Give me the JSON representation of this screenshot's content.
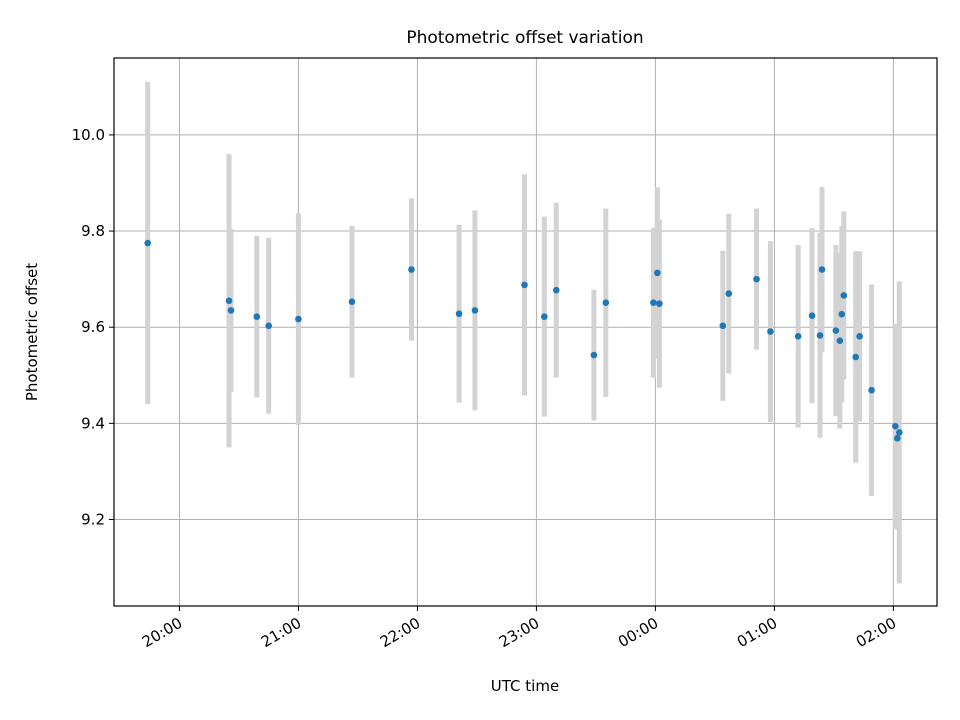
{
  "chart_data": {
    "type": "scatter",
    "title": "Photometric offset variation",
    "xlabel": "UTC time",
    "ylabel": "Photometric offset",
    "x_tick_labels": [
      "20:00",
      "21:00",
      "22:00",
      "23:00",
      "00:00",
      "01:00",
      "02:00"
    ],
    "x_ticks": [
      "20:00",
      "21:00",
      "22:00",
      "23:00",
      "24:00",
      "25:00",
      "26:00"
    ],
    "xlim": [
      "19:27",
      "26:22"
    ],
    "y_tick_labels": [
      "9.2",
      "9.4",
      "9.6",
      "9.8",
      "10.0"
    ],
    "y_ticks": [
      9.2,
      9.4,
      9.6,
      9.8,
      10.0
    ],
    "ylim": [
      9.02,
      10.16
    ],
    "grid": true,
    "point_color": "#1f77b4",
    "errorbar_color": "#d3d3d3",
    "series": [
      {
        "points": [
          {
            "t": "19:44",
            "y": 9.775,
            "err": 0.335
          },
          {
            "t": "20:25",
            "y": 9.655,
            "err": 0.305
          },
          {
            "t": "20:26",
            "y": 9.635,
            "err": 0.17
          },
          {
            "t": "20:39",
            "y": 9.622,
            "err": 0.168
          },
          {
            "t": "20:45",
            "y": 9.603,
            "err": 0.183
          },
          {
            "t": "21:00",
            "y": 9.617,
            "err": 0.22
          },
          {
            "t": "21:27",
            "y": 9.653,
            "err": 0.158
          },
          {
            "t": "21:57",
            "y": 9.72,
            "err": 0.148
          },
          {
            "t": "22:21",
            "y": 9.628,
            "err": 0.185
          },
          {
            "t": "22:29",
            "y": 9.635,
            "err": 0.208
          },
          {
            "t": "22:54",
            "y": 9.688,
            "err": 0.23
          },
          {
            "t": "23:04",
            "y": 9.622,
            "err": 0.208
          },
          {
            "t": "23:10",
            "y": 9.677,
            "err": 0.182
          },
          {
            "t": "23:29",
            "y": 9.542,
            "err": 0.136
          },
          {
            "t": "23:35",
            "y": 9.651,
            "err": 0.196
          },
          {
            "t": "23:59",
            "y": 9.651,
            "err": 0.156
          },
          {
            "t": "24:01",
            "y": 9.713,
            "err": 0.178
          },
          {
            "t": "24:02",
            "y": 9.649,
            "err": 0.175
          },
          {
            "t": "24:34",
            "y": 9.603,
            "err": 0.156
          },
          {
            "t": "24:37",
            "y": 9.67,
            "err": 0.166
          },
          {
            "t": "24:51",
            "y": 9.7,
            "err": 0.147
          },
          {
            "t": "24:58",
            "y": 9.591,
            "err": 0.188
          },
          {
            "t": "25:12",
            "y": 9.581,
            "err": 0.19
          },
          {
            "t": "25:19",
            "y": 9.624,
            "err": 0.182
          },
          {
            "t": "25:23",
            "y": 9.583,
            "err": 0.213
          },
          {
            "t": "25:24",
            "y": 9.72,
            "err": 0.172
          },
          {
            "t": "25:31",
            "y": 9.593,
            "err": 0.178
          },
          {
            "t": "25:33",
            "y": 9.572,
            "err": 0.183
          },
          {
            "t": "25:34",
            "y": 9.627,
            "err": 0.183
          },
          {
            "t": "25:35",
            "y": 9.666,
            "err": 0.175
          },
          {
            "t": "25:41",
            "y": 9.538,
            "err": 0.22
          },
          {
            "t": "25:43",
            "y": 9.581,
            "err": 0.177
          },
          {
            "t": "25:49",
            "y": 9.469,
            "err": 0.22
          },
          {
            "t": "26:01",
            "y": 9.394,
            "err": 0.213
          },
          {
            "t": "26:02",
            "y": 9.369,
            "err": 0.19
          },
          {
            "t": "26:03",
            "y": 9.381,
            "err": 0.314
          }
        ]
      }
    ]
  }
}
